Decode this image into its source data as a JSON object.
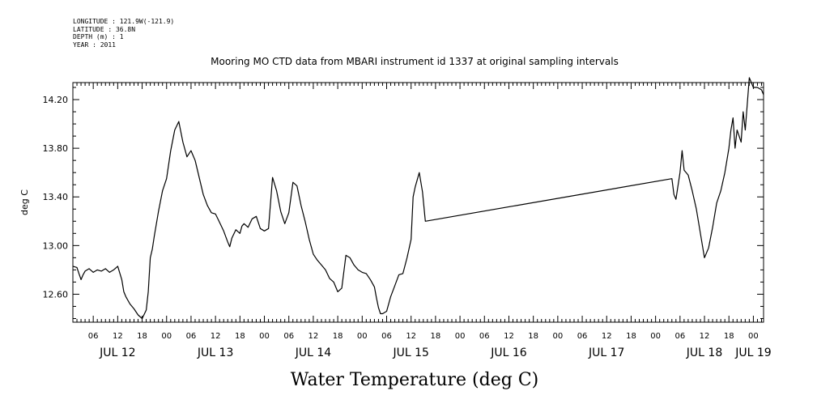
{
  "header": {
    "longitude": "LONGITUDE : 121.9W(-121.9)",
    "latitude": "LATITUDE : 36.8N",
    "depth": "DEPTH (m) : 1",
    "year": "YEAR : 2011"
  },
  "chart_data": {
    "type": "line",
    "title": "Mooring MO CTD data from MBARI instrument id 1337 at original sampling intervals",
    "ylabel": "deg C",
    "bottom_title": "Water Temperature (deg C)",
    "ylim": [
      12.37,
      14.34
    ],
    "xlim_hours": [
      1.0,
      170.5
    ],
    "x_unit": "hours since JUL 12 00:00, 2011",
    "yticks": [
      12.6,
      13.0,
      13.4,
      13.8,
      14.2
    ],
    "ytick_labels": [
      "12.60",
      "13.00",
      "13.40",
      "13.80",
      "14.20"
    ],
    "hour_ticks": [
      6,
      12,
      18,
      24,
      30,
      36,
      42,
      48,
      54,
      60,
      66,
      72,
      78,
      84,
      90,
      96,
      102,
      108,
      114,
      120,
      126,
      132,
      138,
      144,
      150,
      156,
      162,
      168
    ],
    "hour_tick_labels": [
      "06",
      "12",
      "18",
      "00",
      "06",
      "12",
      "18",
      "00",
      "06",
      "12",
      "18",
      "00",
      "06",
      "12",
      "18",
      "00",
      "06",
      "12",
      "18",
      "00",
      "06",
      "12",
      "18",
      "00",
      "06",
      "12",
      "18",
      "00"
    ],
    "day_ticks": [
      12,
      36,
      60,
      84,
      108,
      132,
      156,
      168
    ],
    "day_labels": [
      "JUL 12",
      "JUL 13",
      "JUL 14",
      "JUL 15",
      "JUL 16",
      "JUL 17",
      "JUL 18",
      "JUL 19"
    ],
    "series": [
      {
        "x": [
          1.0,
          2.0,
          2.5,
          3.0,
          3.5,
          4.0,
          5.0,
          6.0,
          7.0,
          8.0,
          9.0,
          10.0,
          11.0,
          12.0,
          13.0,
          13.5,
          14.0,
          15.0,
          16.0,
          17.0,
          18.0,
          19.0,
          19.5,
          20.0,
          20.5,
          21.0,
          22.0,
          23.0,
          24.0,
          25.0,
          26.0,
          27.0,
          28.0,
          29.0,
          30.0,
          31.0,
          32.0,
          33.0,
          34.0,
          35.0,
          36.0,
          37.0,
          38.0,
          39.0,
          39.5,
          40.0,
          41.0,
          42.0,
          42.5,
          43.0,
          44.0,
          45.0,
          46.0,
          47.0,
          48.0,
          49.0,
          50.0,
          51.0,
          52.0,
          53.0,
          54.0,
          55.0,
          56.0,
          57.0,
          58.0,
          59.0,
          60.0,
          61.0,
          62.0,
          63.0,
          64.0,
          65.0,
          66.0,
          67.0,
          68.0,
          69.0,
          70.0,
          71.0,
          72.0,
          73.0,
          74.0,
          75.0,
          75.5,
          76.0,
          76.5,
          77.0,
          78.0,
          79.0,
          80.0,
          81.0,
          82.0,
          83.0,
          84.0,
          84.5,
          85.0,
          86.0,
          86.8,
          87.5,
          148.0,
          148.5,
          149.0,
          150.0,
          150.5,
          151.0,
          152.0,
          153.0,
          154.0,
          155.0,
          156.0,
          157.0,
          158.0,
          159.0,
          160.0,
          161.0,
          162.0,
          162.5,
          163.0,
          163.5,
          164.0,
          165.0,
          165.5,
          166.0,
          167.0,
          168.0,
          169.0,
          170.0,
          170.5
        ],
        "y": [
          12.83,
          12.82,
          12.77,
          12.72,
          12.76,
          12.79,
          12.81,
          12.78,
          12.8,
          12.79,
          12.81,
          12.78,
          12.8,
          12.83,
          12.72,
          12.62,
          12.58,
          12.52,
          12.48,
          12.43,
          12.4,
          12.47,
          12.62,
          12.9,
          12.97,
          13.08,
          13.28,
          13.45,
          13.55,
          13.78,
          13.95,
          14.02,
          13.85,
          13.73,
          13.78,
          13.7,
          13.56,
          13.42,
          13.33,
          13.27,
          13.26,
          13.19,
          13.12,
          13.03,
          12.99,
          13.06,
          13.13,
          13.1,
          13.16,
          13.18,
          13.15,
          13.22,
          13.24,
          13.14,
          13.12,
          13.14,
          13.56,
          13.45,
          13.28,
          13.18,
          13.27,
          13.52,
          13.49,
          13.33,
          13.2,
          13.05,
          12.93,
          12.88,
          12.84,
          12.8,
          12.73,
          12.7,
          12.62,
          12.65,
          12.92,
          12.9,
          12.84,
          12.8,
          12.78,
          12.77,
          12.72,
          12.66,
          12.57,
          12.49,
          12.44,
          12.44,
          12.46,
          12.58,
          12.67,
          12.76,
          12.77,
          12.9,
          13.05,
          13.4,
          13.48,
          13.6,
          13.44,
          13.2,
          13.55,
          13.42,
          13.38,
          13.6,
          13.78,
          13.62,
          13.58,
          13.45,
          13.3,
          13.1,
          12.9,
          12.98,
          13.15,
          13.35,
          13.45,
          13.6,
          13.8,
          13.95,
          14.05,
          13.8,
          13.95,
          13.85,
          14.1,
          13.95,
          14.38,
          14.3,
          14.3,
          14.28,
          14.24
        ]
      }
    ]
  }
}
